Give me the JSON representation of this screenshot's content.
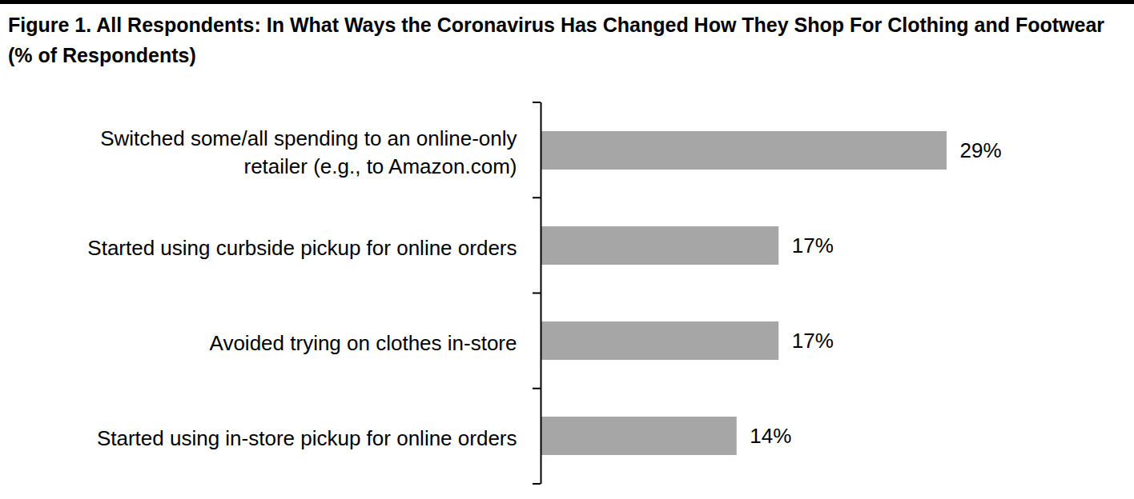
{
  "chart_data": {
    "type": "bar",
    "orientation": "horizontal",
    "title": "Figure 1. All Respondents: In What Ways the Coronavirus Has Changed How They Shop For Clothing and Footwear (% of Respondents)",
    "categories": [
      "Switched some/all spending to an online-only retailer (e.g., to Amazon.com)",
      "Started using curbside pickup for online orders",
      "Avoided trying on clothes in-store",
      "Started using in-store pickup for online orders"
    ],
    "values": [
      29,
      17,
      17,
      14
    ],
    "value_labels": [
      "29%",
      "17%",
      "17%",
      "14%"
    ],
    "color": "#a6a6a6",
    "data_labels": true,
    "tick_labels": "y",
    "grid": false
  }
}
